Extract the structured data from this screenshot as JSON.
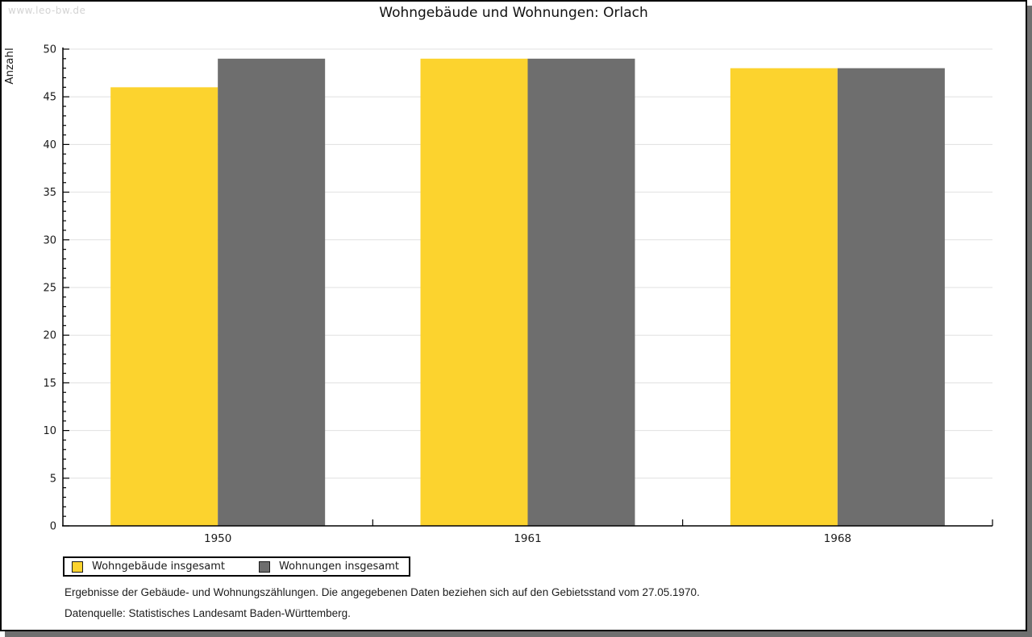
{
  "watermark": "www.leo-bw.de",
  "title": "Wohngebäude und Wohnungen: Orlach",
  "chart_data": {
    "type": "bar",
    "title": "Wohngebäude und Wohnungen: Orlach",
    "categories": [
      "1950",
      "1961",
      "1968"
    ],
    "series": [
      {
        "name": "Wohngebäude insgesamt",
        "color": "#FCD32E",
        "values": [
          46,
          49,
          48
        ]
      },
      {
        "name": "Wohnungen insgesamt",
        "color": "#6E6E6E",
        "values": [
          49,
          49,
          48
        ]
      }
    ],
    "xlabel": "",
    "ylabel": "Anzahl",
    "ylim": [
      0,
      50
    ],
    "y_ticks": [
      "0",
      "5",
      "10",
      "15",
      "20",
      "25",
      "30",
      "35",
      "40",
      "45",
      "50"
    ],
    "y_major_step": 5,
    "y_minor_step": 1,
    "grid": true,
    "legend_position": "bottom-left"
  },
  "footer": {
    "line1": "Ergebnisse der Gebäude- und Wohnungszählungen. Die angegebenen Daten beziehen sich auf den Gebietsstand vom 27.05.1970.",
    "line2": "Datenquelle: Statistisches Landesamt Baden-Württemberg."
  },
  "colors": {
    "series_yellow": "#FCD32E",
    "series_gray": "#6E6E6E",
    "grid": "#E0E0E0",
    "axis": "#000000",
    "text": "#1a1a1a",
    "watermark": "#D3D3D3",
    "shadow": "#6F6F6F"
  }
}
